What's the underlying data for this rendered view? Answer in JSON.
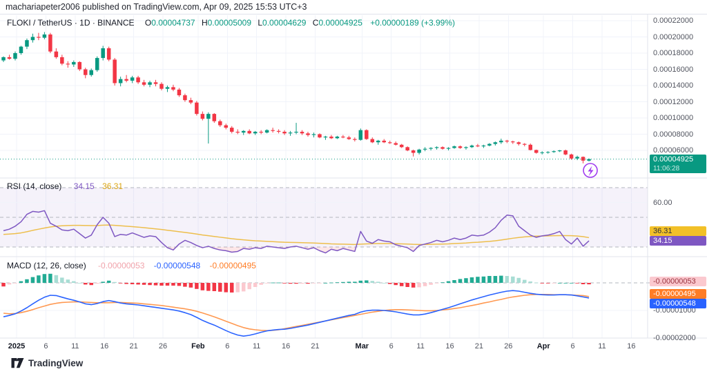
{
  "header": {
    "published_line": "machariapeter2006 published on TradingView.com, Apr 09, 2025 15:53 UTC+3"
  },
  "footer": {
    "brand": "TradingView"
  },
  "colors": {
    "up": "#089981",
    "down": "#f23645",
    "rsi_line": "#7e57c2",
    "rsi_ma_line": "#edbe4b",
    "macd_line": "#2962ff",
    "signal_line": "#ff9850",
    "hist_pos": "#22ab94",
    "hist_pos_weak": "#a8ddd4",
    "hist_neg": "#f23645",
    "hist_neg_weak": "#fbc9cf",
    "grid": "#f0f3fa",
    "separator": "#e0e3eb",
    "axis_text": "#50535e",
    "legend_text": "#131722",
    "band_fill": "rgba(126,87,194,0.08)",
    "oversold_fill": "rgba(242,54,69,0.12)",
    "level_dash": "#b2b5be",
    "current_price_line": "#089981",
    "lightning": "#a03bef"
  },
  "time_axis": {
    "ticks": [
      [
        "2025",
        0,
        1
      ],
      [
        "6",
        5,
        0
      ],
      [
        "11",
        10,
        0
      ],
      [
        "16",
        15,
        0
      ],
      [
        "21",
        20,
        0
      ],
      [
        "26",
        25,
        0
      ],
      [
        "Feb",
        31,
        1
      ],
      [
        "6",
        36,
        0
      ],
      [
        "11",
        41,
        0
      ],
      [
        "16",
        46,
        0
      ],
      [
        "21",
        51,
        0
      ],
      [
        "Mar",
        59,
        1
      ],
      [
        "6",
        64,
        0
      ],
      [
        "11",
        69,
        0
      ],
      [
        "16",
        74,
        0
      ],
      [
        "21",
        79,
        0
      ],
      [
        "26",
        84,
        0
      ],
      [
        "Apr",
        90,
        1
      ],
      [
        "6",
        95,
        0
      ],
      [
        "11",
        100,
        0
      ],
      [
        "16",
        105,
        0
      ]
    ]
  },
  "chart_data": [
    {
      "type": "candlestick",
      "pane": "price",
      "title": "FLOKI / TetherUS · 1D · BINANCE",
      "ohlc": {
        "o_label": "O",
        "o": "0.00004737",
        "h_label": "H",
        "h": "0.00005009",
        "l_label": "L",
        "l": "0.00004629",
        "c_label": "C",
        "c": "0.00004925",
        "change": "+0.00000189 (+3.99%)"
      },
      "unit": 1e-05,
      "start_date": "2024-12-30",
      "ylim": [
        4.2e-05,
        0.000228
      ],
      "y_axis_labels": [
        {
          "text": "0.00022000",
          "v": 22
        },
        {
          "text": "0.00020000",
          "v": 20
        },
        {
          "text": "0.00018000",
          "v": 18
        },
        {
          "text": "0.00016000",
          "v": 16
        },
        {
          "text": "0.00014000",
          "v": 14
        },
        {
          "text": "0.00012000",
          "v": 12
        },
        {
          "text": "0.00010000",
          "v": 10
        },
        {
          "text": "0.00008000",
          "v": 8
        },
        {
          "text": "0.00006000",
          "v": 6
        }
      ],
      "last_price": {
        "text": "0.00004925",
        "v": 4.925,
        "countdown": "11:06:28"
      },
      "candles": [
        [
          17.1,
          17.6,
          16.9,
          17.5
        ],
        [
          17.5,
          17.8,
          17.2,
          17.3
        ],
        [
          17.3,
          18.2,
          17.1,
          18.0
        ],
        [
          18.0,
          18.9,
          17.8,
          18.8
        ],
        [
          18.8,
          19.8,
          18.5,
          19.6
        ],
        [
          19.6,
          20.4,
          19.3,
          20.0
        ],
        [
          20.0,
          20.5,
          19.6,
          19.9
        ],
        [
          19.9,
          20.6,
          19.7,
          20.3
        ],
        [
          20.3,
          20.5,
          18.0,
          18.2
        ],
        [
          18.2,
          18.6,
          17.3,
          17.5
        ],
        [
          17.5,
          17.8,
          16.5,
          16.7
        ],
        [
          16.7,
          17.0,
          16.2,
          16.6
        ],
        [
          16.6,
          17.1,
          16.3,
          16.9
        ],
        [
          16.9,
          17.0,
          15.8,
          16.0
        ],
        [
          16.0,
          16.2,
          14.9,
          15.3
        ],
        [
          15.3,
          16.1,
          15.1,
          15.9
        ],
        [
          15.9,
          17.6,
          15.7,
          17.4
        ],
        [
          17.4,
          18.9,
          17.1,
          18.6
        ],
        [
          18.6,
          18.8,
          17.0,
          17.2
        ],
        [
          17.2,
          17.4,
          14.0,
          14.3
        ],
        [
          14.3,
          15.1,
          13.9,
          14.8
        ],
        [
          14.8,
          15.3,
          14.4,
          14.6
        ],
        [
          14.6,
          15.2,
          14.3,
          15.0
        ],
        [
          15.0,
          15.2,
          14.2,
          14.4
        ],
        [
          14.4,
          14.7,
          13.9,
          14.1
        ],
        [
          14.1,
          14.6,
          13.8,
          14.4
        ],
        [
          14.4,
          14.7,
          13.9,
          14.2
        ],
        [
          14.2,
          14.4,
          13.4,
          13.6
        ],
        [
          13.6,
          14.0,
          13.2,
          13.8
        ],
        [
          13.8,
          14.1,
          13.3,
          13.5
        ],
        [
          13.5,
          13.7,
          12.6,
          12.8
        ],
        [
          12.8,
          13.0,
          12.0,
          12.2
        ],
        [
          12.2,
          12.5,
          11.7,
          11.9
        ],
        [
          11.9,
          12.1,
          10.3,
          10.5
        ],
        [
          10.5,
          10.8,
          9.7,
          9.9
        ],
        [
          9.9,
          10.7,
          6.85,
          10.5
        ],
        [
          10.5,
          10.6,
          9.4,
          9.6
        ],
        [
          9.6,
          9.8,
          8.9,
          9.1
        ],
        [
          9.1,
          9.3,
          8.6,
          8.8
        ],
        [
          8.8,
          9.0,
          8.1,
          8.3
        ],
        [
          8.3,
          8.6,
          8.0,
          8.2
        ],
        [
          8.2,
          8.5,
          7.9,
          8.4
        ],
        [
          8.4,
          8.6,
          8.0,
          8.1
        ],
        [
          8.1,
          8.4,
          7.9,
          8.3
        ],
        [
          8.3,
          8.5,
          8.0,
          8.2
        ],
        [
          8.2,
          8.6,
          8.1,
          8.5
        ],
        [
          8.5,
          8.8,
          8.2,
          8.4
        ],
        [
          8.4,
          8.6,
          8.1,
          8.3
        ],
        [
          8.3,
          8.5,
          7.9,
          8.1
        ],
        [
          8.1,
          8.4,
          7.8,
          8.2
        ],
        [
          8.2,
          9.4,
          8.0,
          8.3
        ],
        [
          8.3,
          8.5,
          7.9,
          8.1
        ],
        [
          8.1,
          8.3,
          7.7,
          7.9
        ],
        [
          7.9,
          8.2,
          7.6,
          8.0
        ],
        [
          8.0,
          8.1,
          7.5,
          7.6
        ],
        [
          7.6,
          7.8,
          7.3,
          7.7
        ],
        [
          7.7,
          7.9,
          7.4,
          7.5
        ],
        [
          7.5,
          7.8,
          7.4,
          7.7
        ],
        [
          7.7,
          7.9,
          7.5,
          7.6
        ],
        [
          7.6,
          7.8,
          7.3,
          7.4
        ],
        [
          7.4,
          7.6,
          7.1,
          7.3
        ],
        [
          7.3,
          8.7,
          7.2,
          8.5
        ],
        [
          8.5,
          8.6,
          7.3,
          7.4
        ],
        [
          7.4,
          7.6,
          6.9,
          7.0
        ],
        [
          7.0,
          7.3,
          6.7,
          7.2
        ],
        [
          7.2,
          7.4,
          6.9,
          7.0
        ],
        [
          7.0,
          7.2,
          6.8,
          6.9
        ],
        [
          6.9,
          7.1,
          6.6,
          6.7
        ],
        [
          6.7,
          6.8,
          6.3,
          6.4
        ],
        [
          6.4,
          6.5,
          5.9,
          6.0
        ],
        [
          6.0,
          6.1,
          5.25,
          5.7
        ],
        [
          5.7,
          6.2,
          5.5,
          6.1
        ],
        [
          6.1,
          6.4,
          5.9,
          6.2
        ],
        [
          6.2,
          6.4,
          6.0,
          6.3
        ],
        [
          6.3,
          6.5,
          6.1,
          6.4
        ],
        [
          6.4,
          6.5,
          6.1,
          6.2
        ],
        [
          6.2,
          6.4,
          6.0,
          6.3
        ],
        [
          6.3,
          6.6,
          6.2,
          6.5
        ],
        [
          6.5,
          6.6,
          6.2,
          6.3
        ],
        [
          6.3,
          6.5,
          6.1,
          6.4
        ],
        [
          6.4,
          6.7,
          6.3,
          6.6
        ],
        [
          6.6,
          6.8,
          6.4,
          6.5
        ],
        [
          6.5,
          6.7,
          6.3,
          6.6
        ],
        [
          6.6,
          6.9,
          6.5,
          6.8
        ],
        [
          6.8,
          7.1,
          6.6,
          7.0
        ],
        [
          7.0,
          7.45,
          6.8,
          7.2
        ],
        [
          7.2,
          7.3,
          6.9,
          7.1
        ],
        [
          7.1,
          7.2,
          6.8,
          7.0
        ],
        [
          7.0,
          7.1,
          6.6,
          6.8
        ],
        [
          6.8,
          6.9,
          6.5,
          6.7
        ],
        [
          6.7,
          6.85,
          6.0,
          6.05
        ],
        [
          6.05,
          6.1,
          5.6,
          5.7
        ],
        [
          5.7,
          5.9,
          5.5,
          5.75
        ],
        [
          5.75,
          5.9,
          5.6,
          5.8
        ],
        [
          5.8,
          6.0,
          5.7,
          5.9
        ],
        [
          5.9,
          6.05,
          5.8,
          6.0
        ],
        [
          6.0,
          6.1,
          5.4,
          5.5
        ],
        [
          5.5,
          5.6,
          4.85,
          5.0
        ],
        [
          5.0,
          5.35,
          4.8,
          5.2
        ],
        [
          5.2,
          5.25,
          4.4,
          4.74
        ],
        [
          4.737,
          5.009,
          4.629,
          4.925
        ]
      ]
    },
    {
      "type": "line",
      "pane": "rsi",
      "title": "RSI (14, close)",
      "legend_values": {
        "rsi": "34.15",
        "ma": "36.31"
      },
      "levels": [
        70,
        50,
        30
      ],
      "grid_level": 60,
      "axis_label": {
        "text": "60.00",
        "v": 60
      },
      "badges": [
        {
          "text": "36.31",
          "style": "yellow"
        },
        {
          "text": "34.15",
          "style": "purple"
        }
      ],
      "rsi": [
        41,
        42,
        44,
        47,
        52,
        54,
        53.5,
        54.5,
        46,
        44,
        41.5,
        41,
        42,
        39,
        36,
        38,
        45,
        50,
        46,
        37,
        38.5,
        38,
        39.5,
        38,
        36.5,
        37.5,
        37,
        33,
        29.5,
        28,
        32,
        34.5,
        33,
        31,
        29.5,
        30.5,
        29,
        28,
        27.5,
        26.5,
        27,
        29,
        28.5,
        29.5,
        29,
        30.5,
        30,
        29.5,
        29,
        30,
        30.5,
        29.5,
        28.5,
        29.5,
        27.5,
        26,
        28.5,
        27.5,
        29,
        28,
        27,
        40.5,
        34,
        32.5,
        35,
        34,
        33.5,
        31.5,
        30.5,
        29.5,
        27,
        31,
        32,
        33,
        34.5,
        33.5,
        34.5,
        36,
        35,
        36,
        38,
        37.5,
        38,
        40,
        43,
        48,
        51.5,
        51,
        44,
        41,
        38,
        36.5,
        37.5,
        38,
        39,
        40.5,
        35,
        32,
        36,
        30.5,
        34.15
      ],
      "ma": [
        38.5,
        38.7,
        39,
        39.5,
        40.3,
        41.2,
        42,
        42.8,
        43.5,
        44,
        44.3,
        44.5,
        44.6,
        44.6,
        44.5,
        44.4,
        44.5,
        44.7,
        44.8,
        44.6,
        44.3,
        44,
        43.7,
        43.4,
        43,
        42.6,
        42.2,
        41.8,
        41.3,
        40.8,
        40.3,
        39.8,
        39.3,
        38.7,
        38.1,
        37.6,
        37.1,
        36.6,
        36.1,
        35.6,
        35.2,
        34.8,
        34.5,
        34.2,
        34,
        33.8,
        33.6,
        33.4,
        33.2,
        33.1,
        33,
        32.9,
        32.8,
        32.7,
        32.5,
        32.3,
        32.1,
        32,
        31.9,
        31.8,
        31.7,
        31.9,
        32.1,
        32.2,
        32.3,
        32.3,
        32.3,
        32.2,
        32.1,
        32,
        31.8,
        31.7,
        31.7,
        31.8,
        31.9,
        32,
        32.1,
        32.3,
        32.5,
        32.7,
        33,
        33.2,
        33.5,
        33.8,
        34.2,
        34.7,
        35.3,
        35.9,
        36.4,
        36.8,
        37.1,
        37.3,
        37.4,
        37.5,
        37.6,
        37.7,
        37.7,
        37.6,
        37.4,
        37,
        36.31
      ]
    },
    {
      "type": "bar",
      "pane": "macd",
      "title": "MACD (12, 26, close)",
      "legend_values": {
        "histogram": "-0.00000053",
        "macd": "-0.00000548",
        "signal": "-0.00000495"
      },
      "unit": 1e-06,
      "badges": [
        {
          "text": "-0.00000053",
          "style": "pink"
        },
        {
          "text": "-0.00000495",
          "style": "orange"
        },
        {
          "text": "-0.00000548",
          "style": "blue"
        }
      ],
      "axis_labels": [
        {
          "text": "-0.00001000",
          "v": -10
        },
        {
          "text": "-0.00002000",
          "v": -20
        }
      ],
      "macd": [
        -12.3,
        -11.8,
        -11.2,
        -10.2,
        -9,
        -7.6,
        -6.3,
        -5.2,
        -4.5,
        -4.6,
        -5.2,
        -5.8,
        -6.3,
        -6.9,
        -7.6,
        -7.9,
        -7.5,
        -6.8,
        -6.4,
        -6.8,
        -7.3,
        -7.6,
        -7.8,
        -8,
        -8.3,
        -8.6,
        -8.9,
        -9.2,
        -9.5,
        -9.8,
        -10.2,
        -10.8,
        -11.5,
        -12.5,
        -13.6,
        -14.5,
        -15.3,
        -16.3,
        -17.3,
        -18.2,
        -18.9,
        -19.3,
        -19,
        -18.5,
        -17.9,
        -17.4,
        -17.1,
        -16.9,
        -16.8,
        -16.5,
        -16.1,
        -15.7,
        -15.3,
        -14.8,
        -14.3,
        -13.8,
        -13.3,
        -12.8,
        -12.3,
        -11.8,
        -11.4,
        -10.6,
        -10.1,
        -9.9,
        -9.9,
        -10,
        -10.2,
        -10.5,
        -10.9,
        -11.3,
        -11.6,
        -11.6,
        -11.3,
        -10.8,
        -10.2,
        -9.6,
        -9,
        -8.3,
        -7.6,
        -6.9,
        -6.2,
        -5.6,
        -5,
        -4.4,
        -3.9,
        -3.4,
        -3,
        -2.8,
        -3,
        -3.4,
        -3.8,
        -4.1,
        -4.3,
        -4.4,
        -4.4,
        -4.3,
        -4.3,
        -4.4,
        -4.7,
        -5.1,
        -5.48
      ],
      "signal": [
        -11,
        -11.2,
        -11.1,
        -10.8,
        -10.3,
        -9.7,
        -9,
        -8.4,
        -7.8,
        -7.4,
        -7.1,
        -7,
        -6.9,
        -6.9,
        -7,
        -7.1,
        -7.2,
        -7.2,
        -7.2,
        -7.1,
        -7.1,
        -7.2,
        -7.3,
        -7.4,
        -7.6,
        -7.8,
        -8,
        -8.2,
        -8.5,
        -8.8,
        -9.1,
        -9.4,
        -9.8,
        -10.3,
        -10.9,
        -11.6,
        -12.3,
        -13.1,
        -13.9,
        -14.7,
        -15.5,
        -16.2,
        -16.7,
        -17,
        -17.2,
        -17.3,
        -17.2,
        -17,
        -16.6,
        -16.2,
        -15.8,
        -15.4,
        -15,
        -14.6,
        -14.2,
        -13.8,
        -13.4,
        -13,
        -12.6,
        -12.2,
        -11.8,
        -11.4,
        -11,
        -10.6,
        -10.3,
        -10,
        -9.8,
        -9.7,
        -9.7,
        -9.8,
        -9.9,
        -10,
        -10.1,
        -10.1,
        -10,
        -9.8,
        -9.6,
        -9.3,
        -9,
        -8.6,
        -8.2,
        -7.8,
        -7.3,
        -6.9,
        -6.4,
        -6,
        -5.5,
        -5.1,
        -4.8,
        -4.5,
        -4.3,
        -4.2,
        -4.2,
        -4.2,
        -4.3,
        -4.3,
        -4.3,
        -4.4,
        -4.5,
        -4.6,
        -4.95
      ]
    }
  ]
}
